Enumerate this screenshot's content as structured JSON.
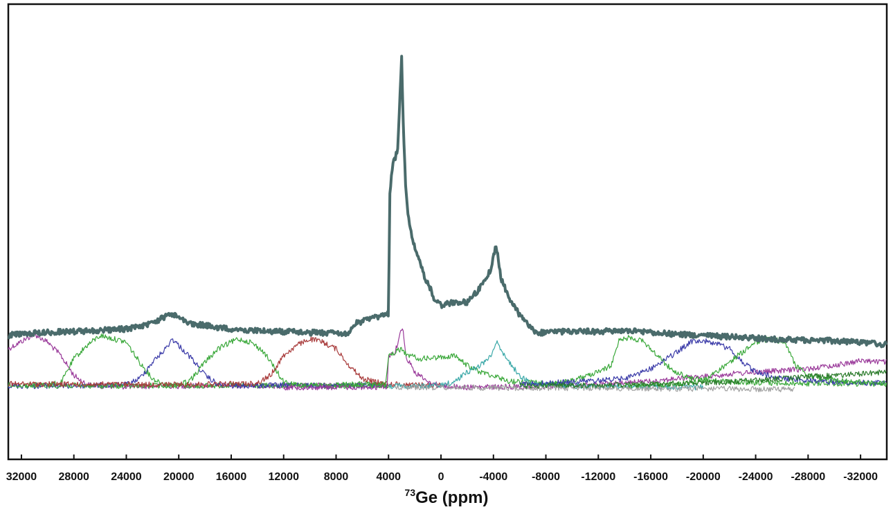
{
  "chart_data": {
    "type": "line",
    "title": "",
    "xlabel_isotope": "73",
    "xlabel_text": "Ge (ppm)",
    "ylabel": "",
    "xlim": [
      33000,
      -34000
    ],
    "x_reversed": true,
    "grid": false,
    "legend": "none",
    "x_ticks": [
      32000,
      28000,
      24000,
      20000,
      16000,
      12000,
      8000,
      4000,
      0,
      -4000,
      -8000,
      -12000,
      -16000,
      -20000,
      -24000,
      -28000,
      -32000
    ],
    "x_tick_labels": [
      "32000",
      "28000",
      "24000",
      "20000",
      "16000",
      "12000",
      "8000",
      "4000",
      "0",
      "-4000",
      "-8000",
      "-12000",
      "-16000",
      "-20000",
      "-24000",
      "-28000",
      "-32000"
    ],
    "summed_spectrum": {
      "color": "#4a6b6b",
      "x": [
        33000,
        32000,
        30000,
        28000,
        26000,
        24000,
        22000,
        20600,
        19000,
        17000,
        15000,
        12000,
        9000,
        7000,
        6500,
        5000,
        4400,
        4000,
        3900,
        3700,
        3300,
        3100,
        3000,
        2900,
        2700,
        2500,
        2200,
        1800,
        1200,
        800,
        500,
        0,
        -1000,
        -2000,
        -3000,
        -3800,
        -4200,
        -4400,
        -4600,
        -5000,
        -6000,
        -7000,
        -7500,
        -9000,
        -12000,
        -14000,
        -16000,
        -18000,
        -20000,
        -22000,
        -24000,
        -26000,
        -28000,
        -30000,
        -32000,
        -34000
      ],
      "y": [
        0.0,
        0.3,
        0.5,
        0.6,
        0.8,
        1.0,
        1.8,
        3.3,
        1.8,
        1.2,
        0.8,
        0.6,
        0.4,
        0.3,
        1.8,
        2.7,
        3.0,
        3.3,
        21.5,
        25.5,
        28.0,
        37.0,
        42.0,
        33.0,
        23.0,
        18.0,
        14.5,
        12.0,
        8.5,
        7.0,
        5.5,
        4.5,
        5.0,
        5.0,
        7.2,
        10.0,
        13.5,
        11.0,
        8.5,
        6.5,
        3.0,
        0.8,
        0.4,
        0.6,
        0.6,
        0.7,
        0.5,
        0.2,
        0.0,
        -0.2,
        -0.4,
        -0.6,
        -0.7,
        -0.8,
        -1.0,
        -1.4
      ]
    },
    "series": [
      {
        "color": "#9a3a9a",
        "x": [
          33000,
          31000,
          30000,
          29000,
          28000,
          27000,
          26000,
          24000,
          22000,
          20000,
          16000,
          12000,
          8000,
          6000
        ],
        "y": [
          -2.0,
          0.2,
          -1.0,
          -3.0,
          -6.0,
          -7.4,
          -7.6,
          -7.7,
          -7.6,
          -7.6,
          -7.5,
          -7.6,
          -7.5,
          -7.4
        ]
      },
      {
        "color": "#3aa83a",
        "x": [
          31000,
          29000,
          28000,
          27000,
          26000,
          24000,
          23000,
          22000,
          21000,
          19000,
          16000,
          12000,
          8000,
          6000,
          4000
        ],
        "y": [
          -7.5,
          -7.2,
          -3.5,
          -1.5,
          0.0,
          -1.0,
          -4.0,
          -6.5,
          -7.4,
          -7.6,
          -7.5,
          -7.6,
          -7.5,
          -7.3,
          -7.4
        ]
      },
      {
        "color": "#3a3aa8",
        "x": [
          33000,
          28000,
          24000,
          23000,
          22000,
          21000,
          20500,
          20000,
          19000,
          18000,
          17000,
          16000,
          12000,
          8000,
          4000
        ],
        "y": [
          -7.6,
          -7.6,
          -7.4,
          -6.5,
          -4.0,
          -2.0,
          -0.5,
          -1.5,
          -3.5,
          -6.0,
          -7.4,
          -7.6,
          -7.5,
          -7.6,
          -7.5
        ]
      },
      {
        "color": "#3aa83a",
        "x": [
          33000,
          24000,
          20000,
          19000,
          18000,
          17000,
          16000,
          15500,
          14500,
          13500,
          12500,
          12000,
          11000,
          8000,
          4000
        ],
        "y": [
          -7.5,
          -7.6,
          -7.5,
          -6.5,
          -4.0,
          -2.0,
          -1.0,
          -0.5,
          -1.0,
          -2.5,
          -5.5,
          -7.0,
          -7.5,
          -7.6,
          -7.5
        ]
      },
      {
        "color": "#a83a3a",
        "x": [
          33000,
          20000,
          16000,
          14000,
          13000,
          12000,
          11000,
          10000,
          9000,
          8000,
          7000,
          6000,
          5000,
          4000,
          2000,
          0
        ],
        "y": [
          -7.3,
          -7.4,
          -7.3,
          -7.2,
          -6.0,
          -3.0,
          -1.5,
          -0.5,
          -1.0,
          -2.0,
          -4.5,
          -6.5,
          -7.0,
          -7.3,
          -7.4,
          -7.5
        ]
      },
      {
        "color": "#9a3a9a",
        "x": [
          12000,
          8000,
          4500,
          4100,
          4000,
          3500,
          3000,
          2900,
          2700,
          2000,
          1000,
          0,
          -2000,
          -6000,
          -10000,
          -14000,
          -18000,
          -20000,
          -22000,
          -24000,
          -26000,
          -28000,
          -30000,
          -32000,
          -34000
        ],
        "y": [
          -7.8,
          -7.8,
          -7.8,
          -7.6,
          -3.0,
          -2.5,
          1.0,
          1.5,
          -3.0,
          -5.5,
          -7.0,
          -7.6,
          -7.8,
          -7.7,
          -7.5,
          -7.2,
          -6.5,
          -6.2,
          -5.8,
          -5.5,
          -5.3,
          -5.0,
          -4.5,
          -3.8,
          -4.0
        ]
      },
      {
        "color": "#3aa83a",
        "x": [
          8000,
          4200,
          4000,
          3500,
          3000,
          2800,
          2500,
          1500,
          0,
          -1000,
          -2000,
          -3000,
          -4000,
          -5000,
          -6000,
          -8000,
          -10000
        ],
        "y": [
          -7.4,
          -7.4,
          -3.0,
          -2.5,
          -2.0,
          -2.5,
          -3.0,
          -3.5,
          -3.3,
          -3.0,
          -4.5,
          -5.5,
          -6.0,
          -6.8,
          -7.0,
          -7.2,
          -7.4
        ]
      },
      {
        "color": "#3aa8a8",
        "x": [
          4000,
          2000,
          0,
          -1000,
          -2000,
          -3000,
          -3800,
          -4300,
          -4600,
          -5200,
          -6000,
          -7000,
          -10000,
          -14000,
          -18000,
          -20000
        ],
        "y": [
          -7.6,
          -7.6,
          -7.5,
          -7.0,
          -5.5,
          -4.5,
          -3.0,
          -0.6,
          -2.5,
          -4.0,
          -6.0,
          -7.3,
          -7.6,
          -7.7,
          -7.8,
          -7.8
        ]
      },
      {
        "color": "#a0a0a0",
        "x": [
          3500,
          2000,
          0,
          -4000,
          -8000,
          -12000,
          -16000,
          -20000,
          -24000,
          -27000
        ],
        "y": [
          -7.7,
          -7.8,
          -7.8,
          -7.9,
          -7.9,
          -7.9,
          -8.0,
          -8.0,
          -8.1,
          -8.1
        ]
      },
      {
        "color": "#3aa83a",
        "x": [
          -8000,
          -10000,
          -12000,
          -13000,
          -13600,
          -14500,
          -15500,
          -16500,
          -17500,
          -18500,
          -19000,
          -22000,
          -26000,
          -30000,
          -34000
        ],
        "y": [
          -7.5,
          -6.8,
          -5.5,
          -4.5,
          -0.5,
          -0.3,
          -1.0,
          -3.0,
          -5.0,
          -6.0,
          -6.5,
          -7.0,
          -7.2,
          -7.2,
          -7.3
        ]
      },
      {
        "color": "#3a3aa8",
        "x": [
          -6000,
          -10000,
          -14000,
          -16000,
          -18000,
          -19000,
          -20000,
          -21000,
          -22000,
          -23000,
          -24000,
          -26000,
          -30000,
          -34000
        ],
        "y": [
          -7.3,
          -7.0,
          -6.5,
          -5.0,
          -2.5,
          -1.0,
          -0.8,
          -1.2,
          -2.0,
          -4.0,
          -5.5,
          -6.5,
          -7.0,
          -7.2
        ]
      },
      {
        "color": "#3aa83a",
        "x": [
          -14000,
          -18000,
          -20000,
          -21000,
          -22000,
          -23000,
          -24000,
          -25000,
          -26000,
          -26500,
          -27000,
          -28000,
          -30000,
          -32000,
          -34000
        ],
        "y": [
          -7.5,
          -7.3,
          -6.8,
          -5.5,
          -4.0,
          -2.5,
          -1.0,
          -0.6,
          -0.8,
          -2.0,
          -4.5,
          -6.0,
          -6.8,
          -7.0,
          -7.2
        ]
      },
      {
        "color": "#2a7a2a",
        "x": [
          -6000,
          -10000,
          -14000,
          -18000,
          -22000,
          -26000,
          -28000,
          -30000,
          -32000,
          -34000
        ],
        "y": [
          -7.6,
          -7.5,
          -7.4,
          -7.2,
          -7.0,
          -6.5,
          -6.2,
          -6.0,
          -5.8,
          -5.5
        ]
      }
    ]
  }
}
